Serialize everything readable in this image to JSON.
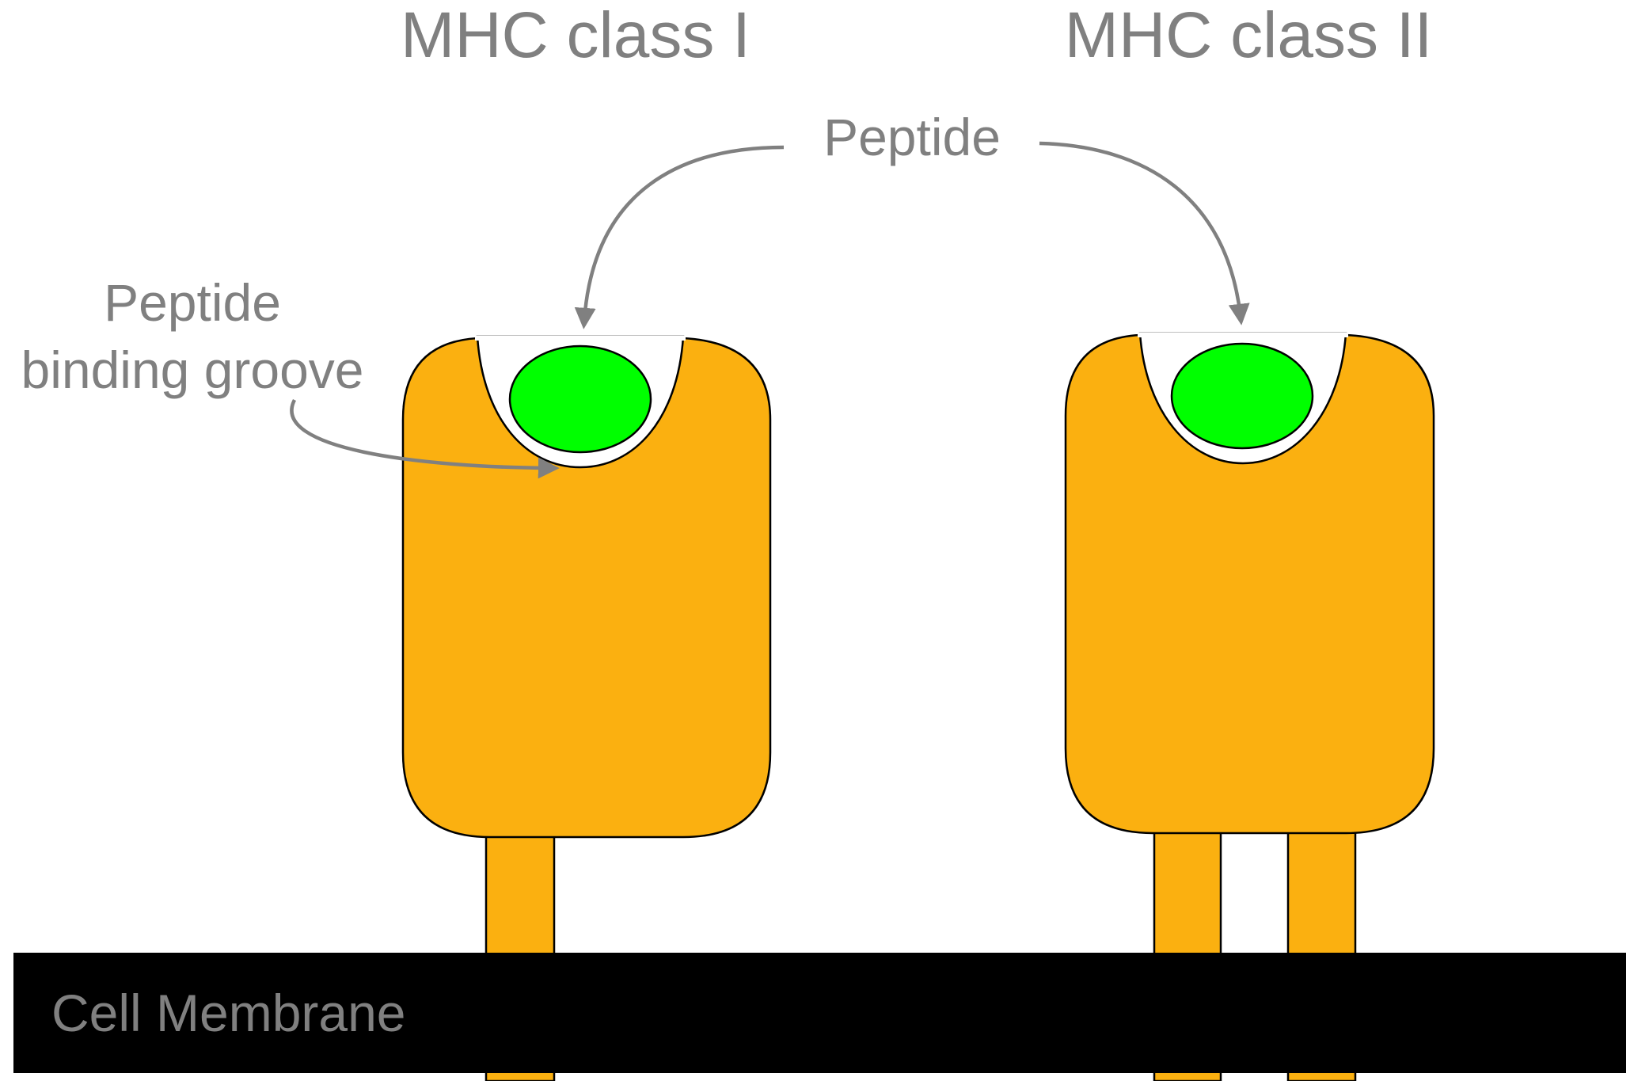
{
  "labels": {
    "mhc_class_1": "MHC class I",
    "mhc_class_2": "MHC class II",
    "peptide": "Peptide",
    "groove_line1": "Peptide",
    "groove_line2": "binding groove",
    "membrane": "Cell Membrane"
  },
  "colors": {
    "protein": "#FBB010",
    "peptide": "#00FF00",
    "label_text": "#808080",
    "arrow": "#808080",
    "membrane": "#000000",
    "outline": "#000000",
    "background": "#FFFFFF"
  },
  "icons": {
    "arrow_head": "arrow-head-icon"
  }
}
